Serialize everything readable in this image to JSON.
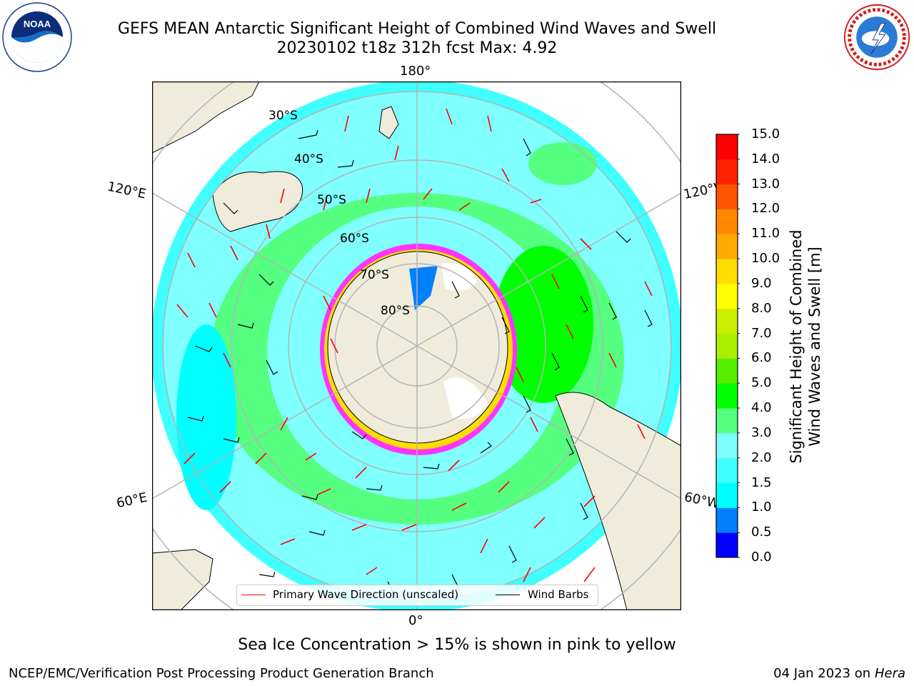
{
  "header": {
    "title_line1": "GEFS MEAN Antarctic Significant Height of Combined Wind Waves and Swell",
    "title_line2": "20230102 t18z 312h fcst   Max: 4.92"
  },
  "logos": {
    "left": "NOAA",
    "right": "NATIONAL WEATHER SERVICE"
  },
  "map": {
    "projection": "south-polar-stereographic",
    "longitude_labels": {
      "top": "180°",
      "upper_left": "120°E",
      "upper_right": "120°W",
      "lower_left": "60°E",
      "lower_right": "60°W",
      "bottom": "0°"
    },
    "latitude_labels": [
      "30°S",
      "40°S",
      "50°S",
      "60°S",
      "70°S",
      "80°S"
    ],
    "colors": {
      "land": "#efecdc",
      "grid": "#b4b4b4",
      "wave_arrow": "#ff0000",
      "wind_barb": "#000000",
      "sea_ice": "#ff33ff"
    }
  },
  "colorbar": {
    "title_line1": "Significant Height of Combined",
    "title_line2": "Wind Waves and Swell [m]",
    "ticks": [
      "0.0",
      "0.5",
      "1.0",
      "1.5",
      "2.0",
      "3.0",
      "4.0",
      "5.0",
      "6.0",
      "7.0",
      "8.0",
      "9.0",
      "10.0",
      "11.0",
      "12.0",
      "13.0",
      "14.0",
      "15.0"
    ],
    "colors": [
      "#0000ff",
      "#0080ff",
      "#00ffff",
      "#40ffff",
      "#80ffff",
      "#55ff80",
      "#00ff00",
      "#55ee00",
      "#aaee00",
      "#ccee00",
      "#ffff00",
      "#ffdd00",
      "#ffaa00",
      "#ff8800",
      "#ff5500",
      "#ff2200",
      "#ff0000"
    ]
  },
  "legend": {
    "wave_label": "Primary Wave Direction (unscaled)",
    "wind_label": "Wind Barbs"
  },
  "note": "Sea Ice Concentration > 15% is shown in pink to yellow",
  "footer": {
    "left": "NCEP/EMC/Verification Post Processing Product Generation Branch",
    "right_date": "04 Jan 2023 on ",
    "right_machine": "Hera"
  }
}
